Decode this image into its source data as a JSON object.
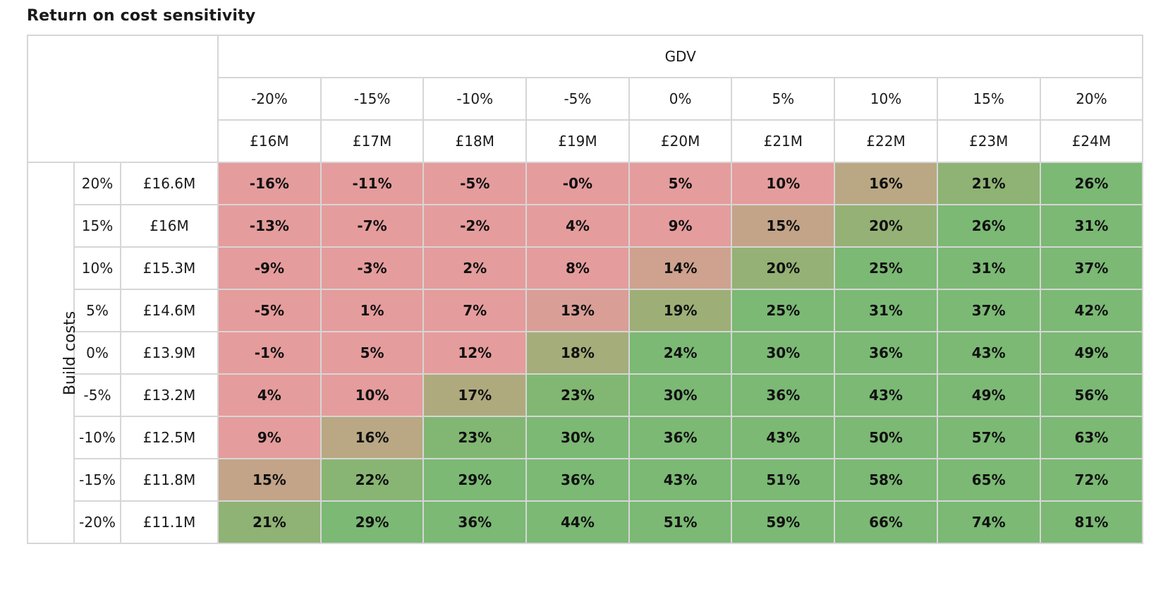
{
  "title": "Return on cost sensitivity",
  "gdv_label": "GDV",
  "build_label": "Build costs",
  "gdv_pcts": [
    "-20%",
    "-15%",
    "-10%",
    "-5%",
    "0%",
    "5%",
    "10%",
    "15%",
    "20%"
  ],
  "gdv_vals": [
    "£16M",
    "£17M",
    "£18M",
    "£19M",
    "£20M",
    "£21M",
    "£22M",
    "£23M",
    "£24M"
  ],
  "build_pcts": [
    "20%",
    "15%",
    "10%",
    "5%",
    "0%",
    "-5%",
    "-10%",
    "-15%",
    "-20%"
  ],
  "build_vals": [
    "£16.6M",
    "£16M",
    "£15.3M",
    "£14.6M",
    "£13.9M",
    "£13.2M",
    "£12.5M",
    "£11.8M",
    "£11.1M"
  ],
  "cells": [
    [
      "-16%",
      "-11%",
      "-5%",
      "-0%",
      "5%",
      "10%",
      "16%",
      "21%",
      "26%"
    ],
    [
      "-13%",
      "-7%",
      "-2%",
      "4%",
      "9%",
      "15%",
      "20%",
      "26%",
      "31%"
    ],
    [
      "-9%",
      "-3%",
      "2%",
      "8%",
      "14%",
      "20%",
      "25%",
      "31%",
      "37%"
    ],
    [
      "-5%",
      "1%",
      "7%",
      "13%",
      "19%",
      "25%",
      "31%",
      "37%",
      "42%"
    ],
    [
      "-1%",
      "5%",
      "12%",
      "18%",
      "24%",
      "30%",
      "36%",
      "43%",
      "49%"
    ],
    [
      "4%",
      "10%",
      "17%",
      "23%",
      "30%",
      "36%",
      "43%",
      "49%",
      "56%"
    ],
    [
      "9%",
      "16%",
      "23%",
      "30%",
      "36%",
      "43%",
      "50%",
      "57%",
      "63%"
    ],
    [
      "15%",
      "22%",
      "29%",
      "36%",
      "43%",
      "51%",
      "58%",
      "65%",
      "72%"
    ],
    [
      "21%",
      "29%",
      "36%",
      "44%",
      "51%",
      "59%",
      "66%",
      "74%",
      "81%"
    ]
  ],
  "colors": {
    "red": "#e59c9c",
    "green": "#7bb974",
    "border": "#d6d6d6"
  }
}
